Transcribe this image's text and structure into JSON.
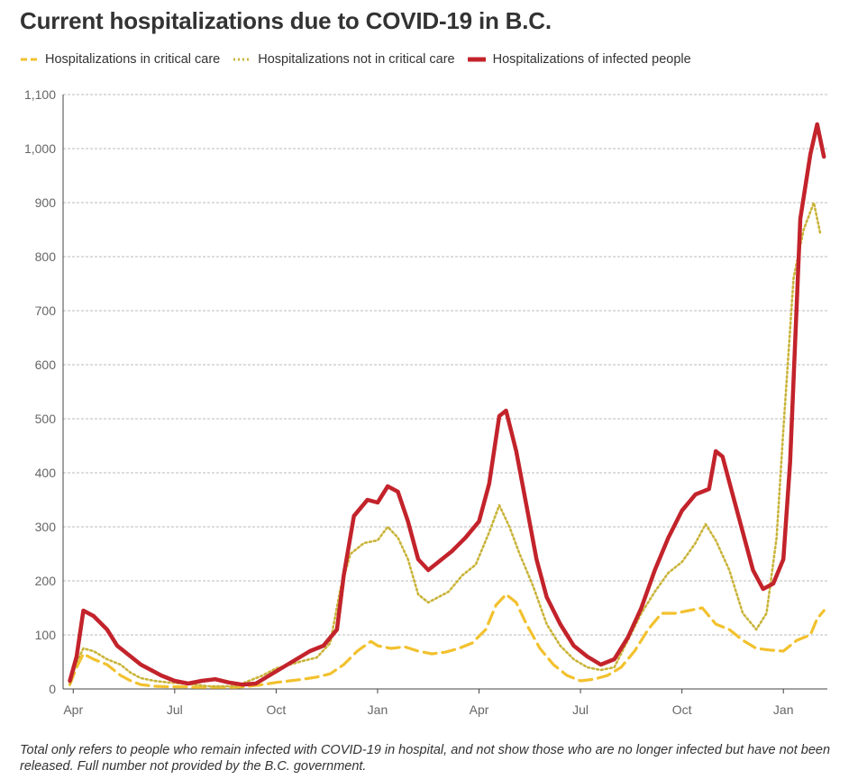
{
  "title": "Current hospitalizations due to COVID-19 in B.C.",
  "footnote": "Total only refers to people who remain infected with COVID-19 in hospital, and not show those who are no longer infected but have not been released. Full number not provided by the B.C. government.",
  "colors": {
    "critical": "#f2c12e",
    "not_critical": "#c9b43a",
    "infected": "#c3232b"
  },
  "chart_data": {
    "type": "line",
    "ylim": [
      0,
      1100
    ],
    "yticks": [
      0,
      100,
      200,
      300,
      400,
      500,
      600,
      700,
      800,
      900,
      1000,
      1100
    ],
    "ytick_labels": [
      "0",
      "100",
      "200",
      "300",
      "400",
      "500",
      "600",
      "700",
      "800",
      "900",
      "1,000",
      "1,100"
    ],
    "xtick_labels": [
      "Apr",
      "Jul",
      "Oct",
      "Jan",
      "Apr",
      "Jul",
      "Oct",
      "Jan"
    ],
    "xtick_months": [
      1,
      4,
      7,
      10,
      13,
      16,
      19,
      22
    ],
    "x_range_months": [
      0.7,
      23.3
    ],
    "grid": true,
    "legend_position": "top-left",
    "series": [
      {
        "name": "Hospitalizations in critical care",
        "style": "dashed",
        "points": [
          [
            0.9,
            8
          ],
          [
            1.1,
            40
          ],
          [
            1.3,
            65
          ],
          [
            1.6,
            55
          ],
          [
            2.0,
            45
          ],
          [
            2.4,
            25
          ],
          [
            2.7,
            15
          ],
          [
            3.0,
            8
          ],
          [
            3.4,
            5
          ],
          [
            3.8,
            4
          ],
          [
            4.2,
            4
          ],
          [
            4.6,
            3
          ],
          [
            5.0,
            3
          ],
          [
            5.4,
            3
          ],
          [
            5.8,
            3
          ],
          [
            6.2,
            5
          ],
          [
            6.6,
            8
          ],
          [
            7.0,
            12
          ],
          [
            7.4,
            15
          ],
          [
            7.8,
            18
          ],
          [
            8.2,
            22
          ],
          [
            8.6,
            28
          ],
          [
            9.0,
            45
          ],
          [
            9.4,
            70
          ],
          [
            9.8,
            88
          ],
          [
            10.0,
            80
          ],
          [
            10.4,
            75
          ],
          [
            10.8,
            78
          ],
          [
            11.2,
            70
          ],
          [
            11.6,
            65
          ],
          [
            12.0,
            68
          ],
          [
            12.4,
            75
          ],
          [
            12.8,
            85
          ],
          [
            13.2,
            110
          ],
          [
            13.5,
            155
          ],
          [
            13.8,
            175
          ],
          [
            14.1,
            160
          ],
          [
            14.4,
            120
          ],
          [
            14.8,
            75
          ],
          [
            15.2,
            45
          ],
          [
            15.6,
            25
          ],
          [
            16.0,
            15
          ],
          [
            16.4,
            18
          ],
          [
            16.8,
            25
          ],
          [
            17.2,
            40
          ],
          [
            17.6,
            70
          ],
          [
            18.0,
            110
          ],
          [
            18.4,
            140
          ],
          [
            18.8,
            140
          ],
          [
            19.2,
            145
          ],
          [
            19.6,
            150
          ],
          [
            20.0,
            120
          ],
          [
            20.4,
            110
          ],
          [
            20.8,
            90
          ],
          [
            21.2,
            75
          ],
          [
            21.6,
            72
          ],
          [
            22.0,
            70
          ],
          [
            22.4,
            90
          ],
          [
            22.8,
            100
          ],
          [
            23.0,
            130
          ],
          [
            23.2,
            145
          ]
        ]
      },
      {
        "name": "Hospitalizations not in critical care",
        "style": "dotted",
        "points": [
          [
            0.9,
            10
          ],
          [
            1.1,
            50
          ],
          [
            1.3,
            75
          ],
          [
            1.6,
            70
          ],
          [
            2.0,
            55
          ],
          [
            2.4,
            45
          ],
          [
            2.7,
            30
          ],
          [
            3.0,
            20
          ],
          [
            3.4,
            15
          ],
          [
            3.8,
            12
          ],
          [
            4.2,
            10
          ],
          [
            4.6,
            8
          ],
          [
            5.0,
            5
          ],
          [
            5.4,
            5
          ],
          [
            5.8,
            5
          ],
          [
            6.2,
            15
          ],
          [
            6.6,
            25
          ],
          [
            7.0,
            38
          ],
          [
            7.4,
            45
          ],
          [
            7.8,
            52
          ],
          [
            8.2,
            58
          ],
          [
            8.6,
            85
          ],
          [
            8.9,
            185
          ],
          [
            9.2,
            250
          ],
          [
            9.6,
            270
          ],
          [
            10.0,
            275
          ],
          [
            10.3,
            300
          ],
          [
            10.6,
            280
          ],
          [
            10.9,
            240
          ],
          [
            11.2,
            175
          ],
          [
            11.5,
            160
          ],
          [
            11.8,
            170
          ],
          [
            12.1,
            180
          ],
          [
            12.5,
            210
          ],
          [
            12.9,
            230
          ],
          [
            13.3,
            290
          ],
          [
            13.6,
            340
          ],
          [
            13.9,
            300
          ],
          [
            14.2,
            250
          ],
          [
            14.6,
            190
          ],
          [
            15.0,
            120
          ],
          [
            15.4,
            80
          ],
          [
            15.8,
            55
          ],
          [
            16.2,
            40
          ],
          [
            16.6,
            35
          ],
          [
            17.0,
            40
          ],
          [
            17.4,
            90
          ],
          [
            17.8,
            140
          ],
          [
            18.2,
            180
          ],
          [
            18.6,
            215
          ],
          [
            19.0,
            235
          ],
          [
            19.4,
            270
          ],
          [
            19.7,
            305
          ],
          [
            20.0,
            275
          ],
          [
            20.4,
            220
          ],
          [
            20.8,
            140
          ],
          [
            21.2,
            110
          ],
          [
            21.5,
            140
          ],
          [
            21.8,
            280
          ],
          [
            22.0,
            480
          ],
          [
            22.3,
            760
          ],
          [
            22.6,
            850
          ],
          [
            22.9,
            900
          ],
          [
            23.1,
            840
          ]
        ]
      },
      {
        "name": "Hospitalizations of infected people",
        "style": "solid",
        "points": [
          [
            0.9,
            15
          ],
          [
            1.1,
            60
          ],
          [
            1.3,
            145
          ],
          [
            1.6,
            135
          ],
          [
            2.0,
            110
          ],
          [
            2.3,
            80
          ],
          [
            2.6,
            65
          ],
          [
            3.0,
            45
          ],
          [
            3.3,
            35
          ],
          [
            3.6,
            25
          ],
          [
            4.0,
            15
          ],
          [
            4.4,
            10
          ],
          [
            4.8,
            15
          ],
          [
            5.2,
            18
          ],
          [
            5.6,
            12
          ],
          [
            6.0,
            8
          ],
          [
            6.4,
            10
          ],
          [
            6.8,
            25
          ],
          [
            7.2,
            40
          ],
          [
            7.6,
            55
          ],
          [
            8.0,
            70
          ],
          [
            8.4,
            80
          ],
          [
            8.8,
            110
          ],
          [
            9.0,
            210
          ],
          [
            9.3,
            320
          ],
          [
            9.7,
            350
          ],
          [
            10.0,
            345
          ],
          [
            10.3,
            375
          ],
          [
            10.6,
            365
          ],
          [
            10.9,
            310
          ],
          [
            11.2,
            240
          ],
          [
            11.5,
            220
          ],
          [
            11.8,
            235
          ],
          [
            12.2,
            255
          ],
          [
            12.6,
            280
          ],
          [
            13.0,
            310
          ],
          [
            13.3,
            380
          ],
          [
            13.6,
            505
          ],
          [
            13.8,
            515
          ],
          [
            14.1,
            440
          ],
          [
            14.4,
            340
          ],
          [
            14.7,
            240
          ],
          [
            15.0,
            170
          ],
          [
            15.4,
            120
          ],
          [
            15.8,
            80
          ],
          [
            16.2,
            60
          ],
          [
            16.6,
            45
          ],
          [
            17.0,
            55
          ],
          [
            17.4,
            95
          ],
          [
            17.8,
            150
          ],
          [
            18.2,
            220
          ],
          [
            18.6,
            280
          ],
          [
            19.0,
            330
          ],
          [
            19.4,
            360
          ],
          [
            19.8,
            370
          ],
          [
            20.0,
            440
          ],
          [
            20.2,
            430
          ],
          [
            20.5,
            360
          ],
          [
            20.8,
            290
          ],
          [
            21.1,
            220
          ],
          [
            21.4,
            185
          ],
          [
            21.7,
            195
          ],
          [
            22.0,
            240
          ],
          [
            22.2,
            420
          ],
          [
            22.5,
            870
          ],
          [
            22.8,
            990
          ],
          [
            23.0,
            1045
          ],
          [
            23.2,
            985
          ]
        ]
      }
    ]
  }
}
